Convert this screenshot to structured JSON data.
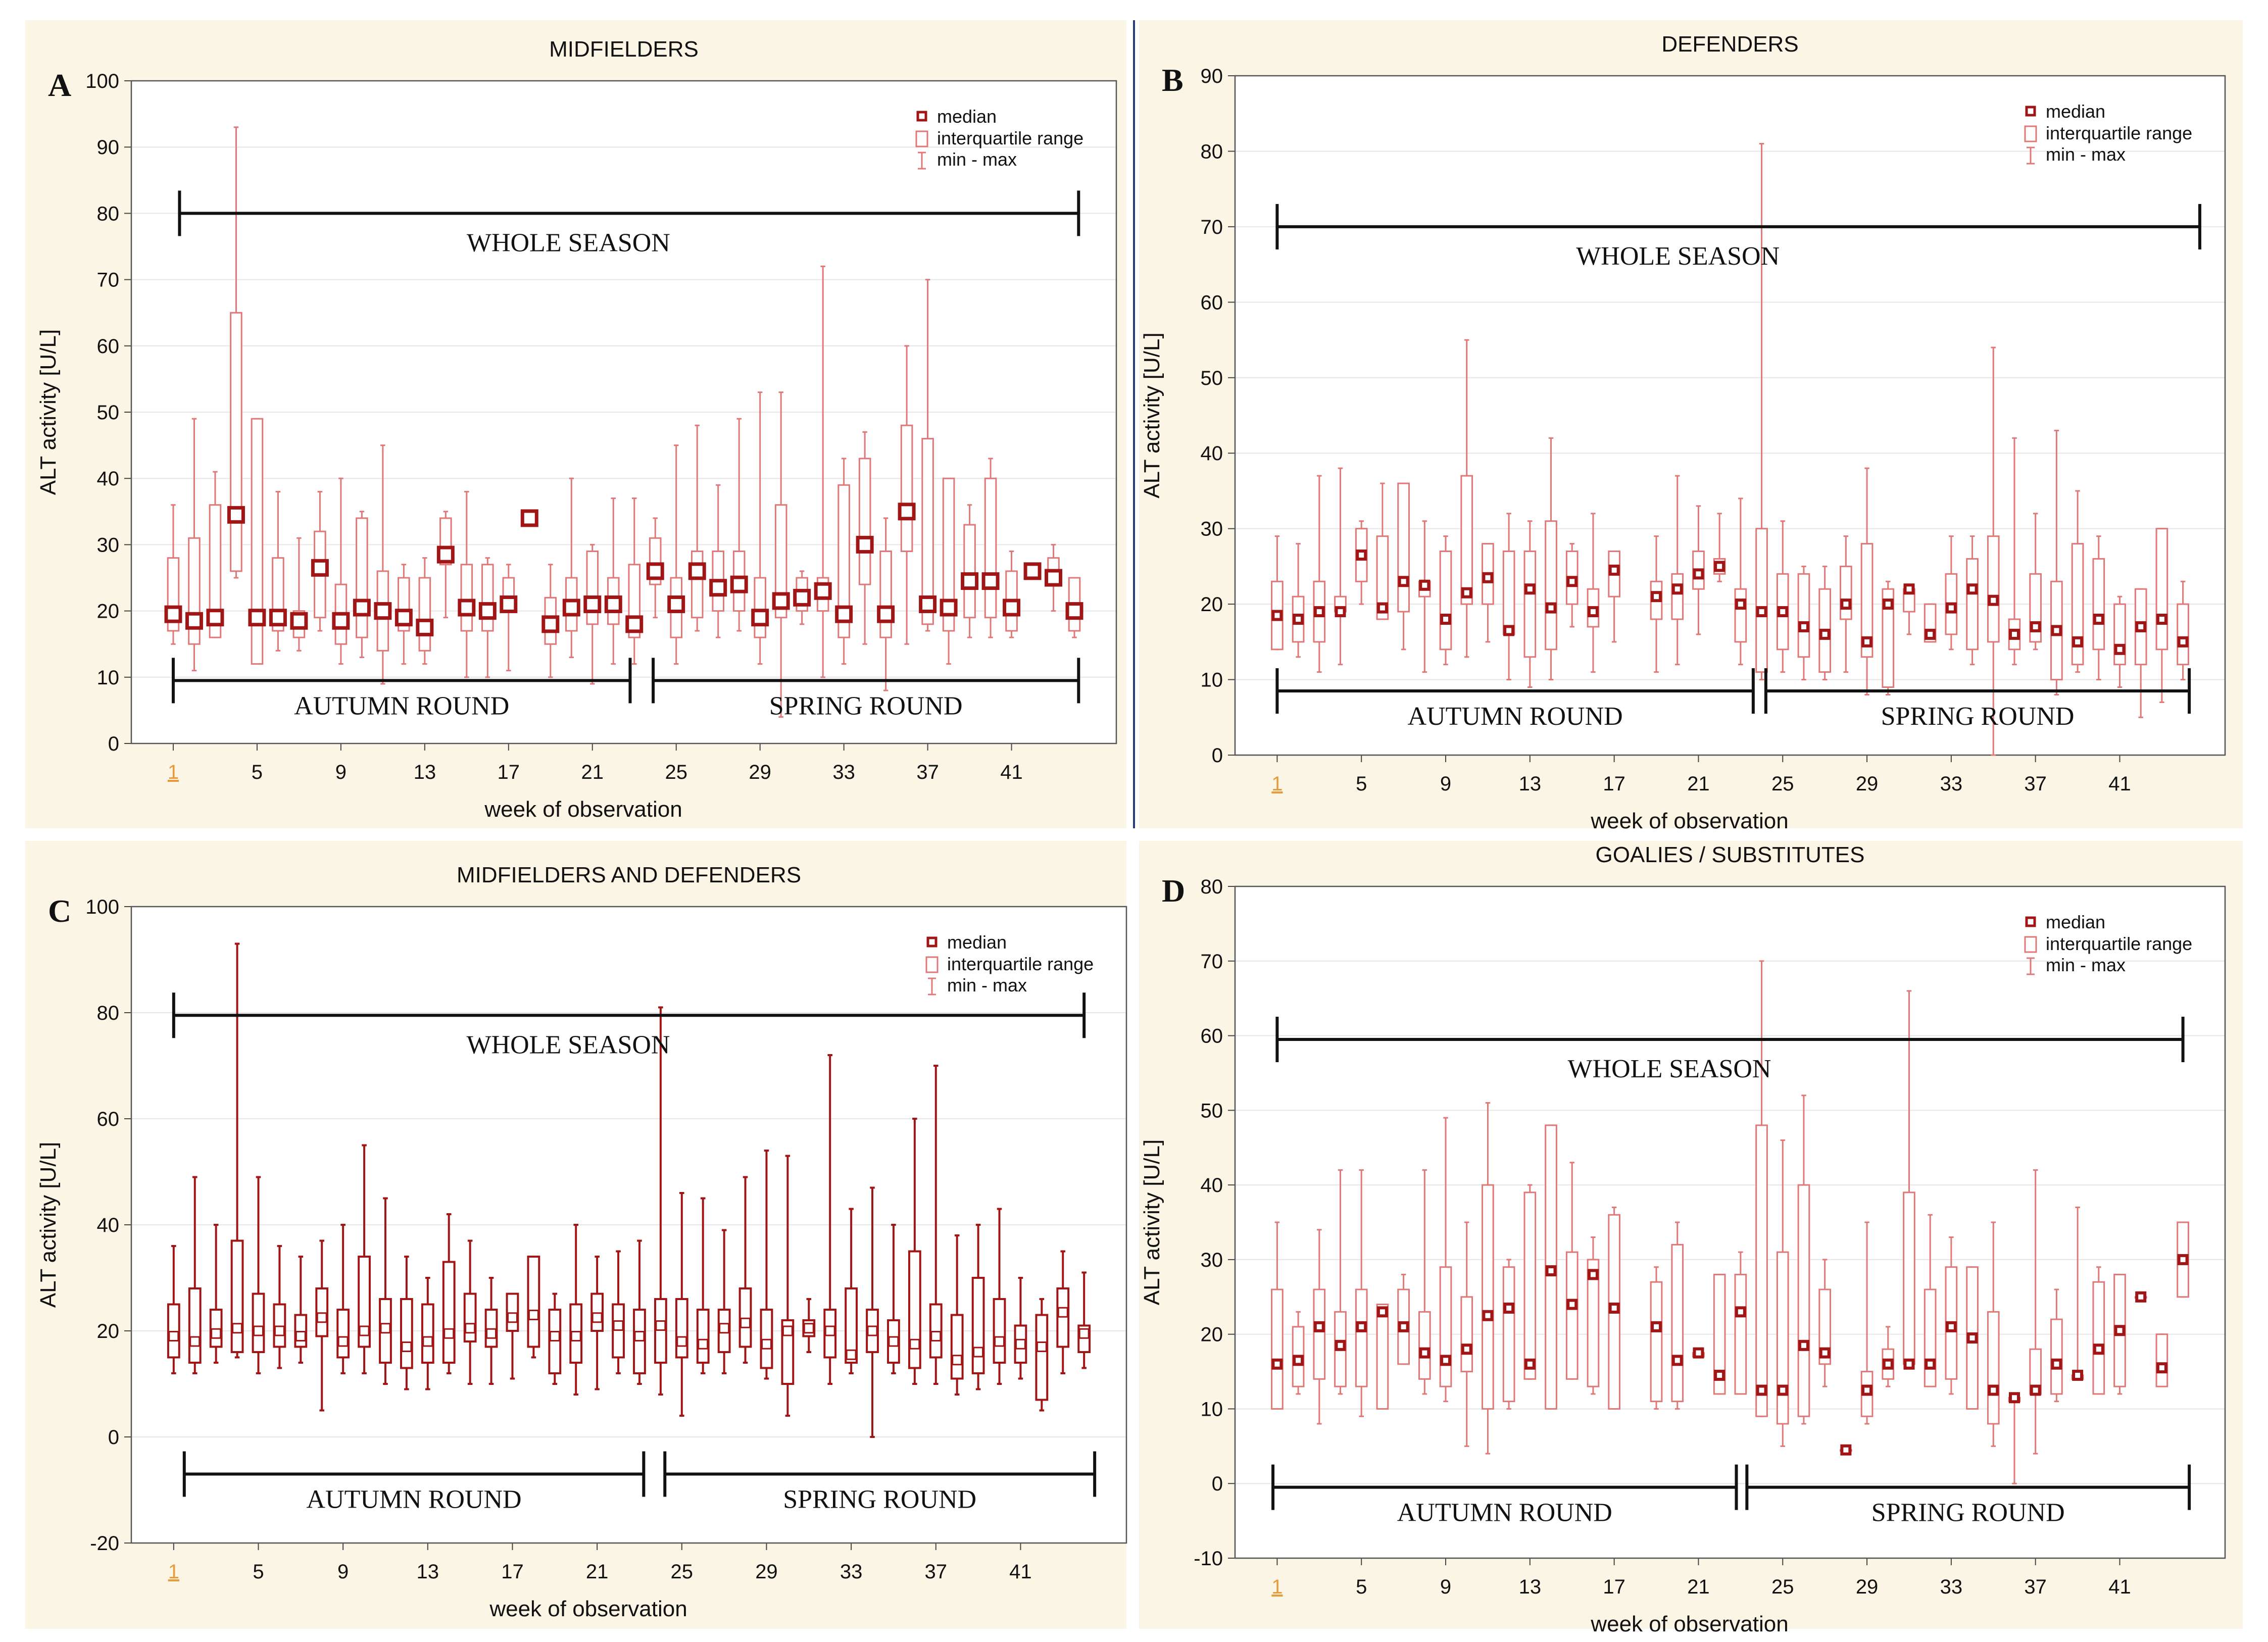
{
  "colors": {
    "panel_bg": "#fbf5e6",
    "plot_bg": "#ffffff",
    "box": "#e07878",
    "median": "#a01616",
    "dark": "#111111",
    "grid": "#e6e6e6",
    "tick_highlight": "#e69b3a"
  },
  "chart_data": [
    {
      "type": "box",
      "panel_letter": "A",
      "title": "MIDFIELDERS",
      "xlabel": "week of observation",
      "ylabel": "ALT activity [U/L]",
      "ylim": [
        0,
        100
      ],
      "yticks": [
        0,
        10,
        20,
        30,
        40,
        50,
        60,
        70,
        80,
        90,
        100
      ],
      "xlim": [
        -1,
        46
      ],
      "xticks": [
        1,
        5,
        9,
        13,
        17,
        21,
        25,
        29,
        33,
        37,
        41
      ],
      "highlight_tick": 1,
      "legend": [
        "median",
        "interquartile range",
        "min - max"
      ],
      "season_bars": [
        {
          "label": "WHOLE SEASON",
          "x0": 1.3,
          "x1": 44.2,
          "y": 80
        },
        {
          "label": "AUTUMN ROUND",
          "x0": 1.0,
          "x1": 22.8,
          "y": 9.5
        },
        {
          "label": "SPRING ROUND",
          "x0": 23.9,
          "x1": 44.2,
          "y": 9.5
        }
      ],
      "weeks": [
        1,
        2,
        3,
        4,
        5,
        6,
        7,
        8,
        9,
        10,
        11,
        12,
        13,
        14,
        15,
        16,
        17,
        18,
        19,
        20,
        21,
        22,
        23,
        24,
        25,
        26,
        27,
        28,
        29,
        30,
        31,
        32,
        33,
        34,
        35,
        36,
        37,
        38,
        39,
        40,
        41,
        42,
        43,
        44
      ],
      "median": [
        19.5,
        18.5,
        19,
        34.5,
        19,
        19,
        18.5,
        26.5,
        18.5,
        20.5,
        20,
        19,
        17.5,
        28.5,
        20.5,
        20,
        21,
        34,
        18,
        20.5,
        21,
        21,
        18,
        26,
        21,
        26,
        23.5,
        24,
        19,
        21.5,
        22,
        23,
        19.5,
        30,
        19.5,
        35,
        21,
        20.5,
        24.5,
        24.5,
        20.5,
        26,
        25,
        20
      ],
      "q1": [
        17,
        15,
        16,
        26,
        12,
        17,
        16,
        19,
        15,
        16,
        14,
        17,
        14,
        27,
        17,
        17,
        20,
        34,
        15,
        17,
        18,
        18,
        16,
        24,
        16,
        19,
        20,
        20,
        16,
        19,
        20,
        20,
        16,
        24,
        16,
        29,
        18,
        17,
        19,
        19,
        17,
        26,
        24,
        17
      ],
      "q3": [
        28,
        31,
        36,
        65,
        49,
        28,
        20,
        32,
        24,
        34,
        26,
        25,
        25,
        34,
        27,
        27,
        25,
        34,
        22,
        25,
        29,
        25,
        27,
        31,
        25,
        29,
        29,
        29,
        25,
        36,
        25,
        25,
        39,
        43,
        29,
        48,
        46,
        40,
        33,
        40,
        26,
        26,
        28,
        25
      ],
      "min": [
        15,
        11,
        16,
        25,
        12,
        14,
        14,
        17,
        12,
        13,
        9,
        12,
        12,
        19,
        10,
        10,
        11,
        34,
        10,
        13,
        9,
        12,
        12,
        19,
        12,
        17,
        16,
        17,
        12,
        4,
        18,
        10,
        12,
        15,
        8,
        15,
        17,
        12,
        16,
        16,
        16,
        26,
        20,
        16
      ],
      "max": [
        36,
        49,
        41,
        93,
        49,
        38,
        31,
        38,
        40,
        35,
        45,
        27,
        28,
        35,
        38,
        28,
        27,
        34,
        27,
        40,
        30,
        37,
        37,
        34,
        45,
        48,
        39,
        49,
        53,
        53,
        26,
        72,
        43,
        47,
        34,
        60,
        70,
        39,
        36,
        43,
        29,
        26,
        30,
        25
      ]
    },
    {
      "type": "box",
      "panel_letter": "B",
      "title": "DEFENDERS",
      "xlabel": "week of observation",
      "ylabel": "ALT activity [U/L]",
      "ylim": [
        0,
        90
      ],
      "yticks": [
        0,
        10,
        20,
        30,
        40,
        50,
        60,
        70,
        80,
        90
      ],
      "xlim": [
        -1,
        46
      ],
      "xticks": [
        1,
        5,
        9,
        13,
        17,
        21,
        25,
        29,
        33,
        37,
        41
      ],
      "highlight_tick": 1,
      "legend": [
        "median",
        "interquartile range",
        "min - max"
      ],
      "season_bars": [
        {
          "label": "WHOLE SEASON",
          "x0": 1.0,
          "x1": 44.8,
          "y": 70
        },
        {
          "label": "AUTUMN ROUND",
          "x0": 1.0,
          "x1": 23.6,
          "y": 8.5
        },
        {
          "label": "SPRING ROUND",
          "x0": 24.2,
          "x1": 44.3,
          "y": 8.5
        }
      ],
      "weeks": [
        1,
        2,
        3,
        4,
        5,
        6,
        7,
        8,
        9,
        10,
        11,
        12,
        13,
        14,
        15,
        16,
        17,
        19,
        20,
        21,
        22,
        23,
        24,
        25,
        26,
        27,
        28,
        29,
        30,
        31,
        32,
        33,
        34,
        35,
        36,
        37,
        38,
        39,
        40,
        41,
        42,
        43,
        44
      ],
      "median": [
        18.5,
        18,
        19,
        19,
        26.5,
        19.5,
        23,
        22.5,
        18,
        21.5,
        23.5,
        16.5,
        22,
        19.5,
        23,
        19,
        24.5,
        21,
        22,
        24,
        25,
        20,
        19,
        19,
        17,
        16,
        20,
        15,
        20,
        22,
        16,
        19.5,
        22,
        20.5,
        16,
        17,
        16.5,
        15,
        18,
        14,
        17,
        18,
        15
      ],
      "q1": [
        14,
        15,
        15,
        19,
        23,
        18,
        19,
        21,
        14,
        20,
        20,
        16,
        13,
        14,
        20,
        17,
        21,
        18,
        18,
        22,
        24,
        15,
        11,
        14,
        13,
        11,
        18,
        13,
        9,
        19,
        15,
        16,
        14,
        15,
        14,
        15,
        10,
        12,
        14,
        12,
        12,
        14,
        12
      ],
      "q3": [
        23,
        21,
        23,
        21,
        30,
        29,
        36,
        23,
        27,
        37,
        28,
        27,
        27,
        31,
        27,
        22,
        27,
        23,
        24,
        27,
        26,
        22,
        30,
        24,
        24,
        22,
        25,
        28,
        22,
        22,
        20,
        24,
        26,
        29,
        18,
        24,
        23,
        28,
        26,
        20,
        22,
        30,
        20
      ],
      "min": [
        14,
        13,
        11,
        12,
        20,
        18,
        14,
        11,
        12,
        13,
        15,
        10,
        9,
        10,
        17,
        11,
        15,
        11,
        12,
        16,
        23,
        12,
        10,
        11,
        10,
        10,
        11,
        8,
        8,
        16,
        15,
        14,
        12,
        0,
        12,
        14,
        8,
        11,
        10,
        9,
        5,
        7,
        10
      ],
      "max": [
        29,
        28,
        37,
        38,
        31,
        36,
        36,
        31,
        29,
        55,
        28,
        32,
        31,
        42,
        28,
        32,
        27,
        29,
        37,
        33,
        32,
        34,
        81,
        31,
        25,
        25,
        29,
        38,
        23,
        22,
        20,
        29,
        29,
        54,
        42,
        32,
        43,
        35,
        29,
        21,
        22,
        30,
        23
      ]
    },
    {
      "type": "box",
      "panel_letter": "C",
      "title": "MIDFIELDERS AND DEFENDERS",
      "xlabel": "week of observation",
      "ylabel": "ALT activity [U/L]",
      "ylim": [
        -20,
        100
      ],
      "yticks": [
        -20,
        0,
        20,
        40,
        60,
        80,
        100
      ],
      "xlim": [
        -1,
        46
      ],
      "xticks": [
        1,
        5,
        9,
        13,
        17,
        21,
        25,
        29,
        33,
        37,
        41
      ],
      "highlight_tick": 1,
      "legend": [
        "median",
        "interquartile range",
        "min - max"
      ],
      "season_bars": [
        {
          "label": "WHOLE SEASON",
          "x0": 1.0,
          "x1": 44.0,
          "y": 79.5
        },
        {
          "label": "AUTUMN ROUND",
          "x0": 1.5,
          "x1": 23.2,
          "y": -7
        },
        {
          "label": "SPRING ROUND",
          "x0": 24.2,
          "x1": 44.5,
          "y": -7
        }
      ],
      "weeks": [
        1,
        2,
        3,
        4,
        5,
        6,
        7,
        8,
        9,
        10,
        11,
        12,
        13,
        14,
        15,
        16,
        17,
        18,
        19,
        20,
        21,
        22,
        23,
        24,
        25,
        26,
        27,
        28,
        29,
        30,
        31,
        32,
        33,
        34,
        35,
        36,
        37,
        38,
        39,
        40,
        41,
        42,
        43,
        44
      ],
      "median": [
        19,
        18,
        19.5,
        20.5,
        20,
        20,
        19,
        22.5,
        18,
        20,
        20.5,
        17,
        18,
        19.5,
        20.5,
        19.5,
        22.5,
        23,
        19,
        19,
        22.5,
        21,
        19,
        21,
        18,
        17.5,
        20.5,
        21.5,
        17.5,
        20,
        20.5,
        20,
        15.5,
        20,
        18,
        17.5,
        19,
        14.5,
        16,
        18,
        17.5,
        17,
        23.5,
        19.5
      ],
      "q1": [
        15,
        14,
        17,
        16,
        16,
        17,
        17,
        19,
        15,
        17,
        14,
        13,
        14,
        14,
        18,
        17,
        20,
        17,
        12,
        14,
        20,
        15,
        12,
        14,
        15,
        14,
        16,
        17,
        13,
        10,
        19,
        15,
        14,
        16,
        14,
        13,
        15,
        11,
        12,
        14,
        14,
        7,
        17,
        16
      ],
      "q3": [
        25,
        28,
        24,
        37,
        27,
        25,
        23,
        28,
        24,
        34,
        26,
        26,
        25,
        33,
        27,
        24,
        27,
        34,
        24,
        25,
        27,
        25,
        24,
        26,
        26,
        24,
        24,
        28,
        24,
        22,
        22,
        24,
        28,
        24,
        22,
        35,
        25,
        23,
        30,
        26,
        21,
        23,
        28,
        21
      ],
      "min": [
        12,
        12,
        14,
        15,
        12,
        13,
        14,
        5,
        12,
        12,
        10,
        9,
        9,
        12,
        10,
        10,
        11,
        15,
        10,
        8,
        9,
        12,
        10,
        8,
        4,
        12,
        12,
        14,
        11,
        4,
        16,
        10,
        12,
        0,
        12,
        10,
        10,
        8,
        9,
        10,
        11,
        5,
        12,
        13
      ],
      "max": [
        36,
        49,
        40,
        93,
        49,
        36,
        34,
        37,
        40,
        55,
        45,
        34,
        30,
        42,
        37,
        30,
        27,
        34,
        27,
        40,
        34,
        35,
        37,
        81,
        46,
        45,
        39,
        49,
        54,
        53,
        26,
        72,
        43,
        47,
        40,
        60,
        70,
        38,
        40,
        43,
        30,
        26,
        35,
        31
      ]
    },
    {
      "type": "box",
      "panel_letter": "D",
      "title": "GOALIES / SUBSTITUTES",
      "xlabel": "week of observation",
      "ylabel": "ALT activity [U/L]",
      "ylim": [
        -10,
        80
      ],
      "yticks": [
        -10,
        0,
        10,
        20,
        30,
        40,
        50,
        60,
        70,
        80
      ],
      "xlim": [
        -1,
        46
      ],
      "xticks": [
        1,
        5,
        9,
        13,
        17,
        21,
        25,
        29,
        33,
        37,
        41
      ],
      "highlight_tick": 1,
      "legend": [
        "median",
        "interquartile range",
        "min - max"
      ],
      "season_bars": [
        {
          "label": "WHOLE SEASON",
          "x0": 1.0,
          "x1": 44.0,
          "y": 59.5
        },
        {
          "label": "AUTUMN ROUND",
          "x0": 0.8,
          "x1": 22.8,
          "y": -0.5
        },
        {
          "label": "SPRING ROUND",
          "x0": 23.3,
          "x1": 44.3,
          "y": -0.5
        }
      ],
      "weeks": [
        1,
        2,
        3,
        4,
        5,
        6,
        7,
        8,
        9,
        10,
        11,
        12,
        13,
        14,
        15,
        16,
        17,
        19,
        20,
        21,
        22,
        23,
        24,
        25,
        26,
        27,
        28,
        29,
        30,
        31,
        32,
        33,
        34,
        35,
        36,
        37,
        38,
        39,
        40,
        41,
        42,
        43,
        44
      ],
      "median": [
        16,
        16.5,
        21,
        18.5,
        21,
        23,
        21,
        17.5,
        16.5,
        18,
        22.5,
        23.5,
        16,
        28.5,
        24,
        28,
        23.5,
        21,
        16.5,
        17.5,
        14.5,
        23,
        12.5,
        12.5,
        18.5,
        17.5,
        4.5,
        12.5,
        16,
        16,
        16,
        21,
        19.5,
        12.5,
        11.5,
        12.5,
        16,
        14.5,
        18,
        20.5,
        25,
        15.5,
        30
      ],
      "q1": [
        10,
        13,
        14,
        13,
        13,
        10,
        16,
        14,
        13,
        15,
        10,
        11,
        14,
        10,
        14,
        13,
        10,
        11,
        11,
        17,
        12,
        12,
        9,
        8,
        9,
        16,
        4.5,
        9,
        14,
        16,
        13,
        14,
        10,
        8,
        11,
        12,
        12,
        14,
        12,
        13,
        25,
        13,
        25
      ],
      "q3": [
        26,
        21,
        26,
        23,
        26,
        24,
        26,
        23,
        29,
        25,
        40,
        29,
        39,
        48,
        31,
        30,
        36,
        27,
        32,
        17.5,
        28,
        28,
        48,
        31,
        40,
        26,
        4.5,
        15,
        18,
        39,
        26,
        29,
        29,
        23,
        11.5,
        18,
        22,
        14.5,
        27,
        28,
        25,
        20,
        35
      ],
      "min": [
        10,
        12,
        8,
        12,
        9,
        10,
        16,
        12,
        11,
        5,
        4,
        10,
        14,
        10,
        14,
        12,
        10,
        10,
        10,
        17,
        12,
        12,
        9,
        5,
        8,
        13,
        4.5,
        8,
        13,
        16,
        13,
        12,
        10,
        5,
        0,
        4,
        11,
        14,
        12,
        12,
        25,
        13,
        25
      ],
      "max": [
        35,
        23,
        34,
        42,
        42,
        24,
        28,
        42,
        49,
        35,
        51,
        30,
        40,
        48,
        43,
        33,
        37,
        29,
        35,
        17.5,
        28,
        31,
        70,
        46,
        52,
        30,
        4.5,
        35,
        21,
        66,
        36,
        33,
        29,
        35,
        11.5,
        42,
        26,
        37,
        29,
        28,
        25,
        20,
        35
      ]
    }
  ]
}
